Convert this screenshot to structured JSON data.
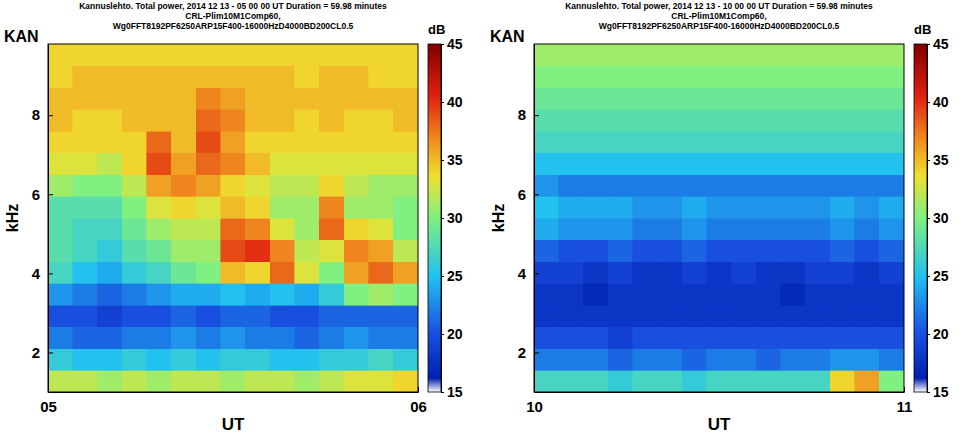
{
  "chart_data": [
    {
      "type": "heatmap",
      "title": [
        "Kannuslehto. Total power, 2014 12 13 - 05 00 00 UT Duration = 59.98 minutes",
        "CRL-Plim10M1Comp60,",
        "Wg0FFT8192PF6250ARP15F400-16000HzD4000BD200CL0.5"
      ],
      "annotation": "KAN",
      "x_label": "UT",
      "y_label": "kHz",
      "xlim": [
        5,
        6
      ],
      "xticks": [
        {
          "value": 5,
          "label": "05"
        },
        {
          "value": 6,
          "label": "06"
        }
      ],
      "ylim": [
        1,
        9.8
      ],
      "yticks": [
        2,
        4,
        6,
        8
      ],
      "x_bins": [
        5,
        5.0667,
        5.1333,
        5.2,
        5.2667,
        5.3333,
        5.4,
        5.4667,
        5.5333,
        5.6,
        5.6667,
        5.7333,
        5.8,
        5.8667,
        5.9333,
        6
      ],
      "y_bins": [
        1,
        1.55,
        2.1,
        2.65,
        3.2,
        3.75,
        4.3,
        4.85,
        5.4,
        5.95,
        6.5,
        7.05,
        7.6,
        8.15,
        8.7,
        9.25,
        9.8
      ],
      "values": [
        [
          32,
          32,
          31,
          32,
          31,
          32,
          32,
          31,
          32,
          32,
          31,
          32,
          33,
          33,
          34
        ],
        [
          26,
          25,
          25,
          26,
          25,
          26,
          25,
          26,
          26,
          25,
          25,
          26,
          26,
          27,
          26
        ],
        [
          22,
          21,
          21,
          22,
          22,
          23,
          22,
          23,
          22,
          22,
          21,
          22,
          23,
          22,
          22
        ],
        [
          20,
          20,
          19,
          20,
          20,
          21,
          20,
          21,
          21,
          20,
          20,
          21,
          21,
          21,
          21
        ],
        [
          23,
          22,
          21,
          22,
          23,
          24,
          24,
          25,
          24,
          25,
          24,
          26,
          30,
          31,
          30
        ],
        [
          27,
          25,
          24,
          26,
          27,
          29,
          30,
          35,
          34,
          38,
          33,
          30,
          36,
          38,
          36
        ],
        [
          28,
          27,
          26,
          28,
          29,
          31,
          31,
          39,
          40,
          37,
          32,
          33,
          37,
          36,
          32
        ],
        [
          28,
          27,
          27,
          29,
          31,
          32,
          32,
          38,
          37,
          33,
          31,
          38,
          34,
          33,
          30
        ],
        [
          28,
          28,
          28,
          30,
          33,
          34,
          33,
          35,
          34,
          31,
          31,
          37,
          31,
          31,
          30
        ],
        [
          31,
          30,
          30,
          32,
          36,
          37,
          36,
          34,
          33,
          32,
          32,
          34,
          32,
          31,
          31
        ],
        [
          33,
          33,
          32,
          34,
          39,
          36,
          38,
          37,
          35,
          33,
          33,
          33,
          33,
          33,
          33
        ],
        [
          34,
          34,
          34,
          34,
          38,
          35,
          39,
          36,
          34,
          34,
          34,
          34,
          34,
          34,
          34
        ],
        [
          35,
          34,
          34,
          35,
          35,
          35,
          38,
          37,
          35,
          35,
          34,
          35,
          34,
          34,
          35
        ],
        [
          35,
          35,
          35,
          35,
          35,
          35,
          37,
          36,
          35,
          35,
          35,
          35,
          35,
          35,
          35
        ],
        [
          34,
          35,
          35,
          35,
          35,
          35,
          35,
          35,
          35,
          35,
          34,
          35,
          35,
          34,
          34
        ],
        [
          34,
          34,
          34,
          34,
          34,
          34,
          34,
          34,
          34,
          34,
          34,
          34,
          34,
          34,
          34
        ]
      ],
      "colorbar": {
        "label": "dB",
        "range": [
          15,
          45
        ],
        "ticks": [
          15,
          20,
          25,
          30,
          35,
          40,
          45
        ]
      }
    },
    {
      "type": "heatmap",
      "title": [
        "Kannuslehto. Total power, 2014 12 13 - 10 00 00 UT Duration = 59.98 minutes",
        "CRL-Plim10M1Comp60,",
        "Wg0FFT8192PF6250ARP15F400-16000HzD4000BD200CL0.5"
      ],
      "annotation": "KAN",
      "x_label": "UT",
      "y_label": "kHz",
      "xlim": [
        10,
        11
      ],
      "xticks": [
        {
          "value": 10,
          "label": "10"
        },
        {
          "value": 11,
          "label": "11"
        }
      ],
      "ylim": [
        1,
        9.8
      ],
      "yticks": [
        2,
        4,
        6,
        8
      ],
      "x_bins": [
        10,
        10.0667,
        10.1333,
        10.2,
        10.2667,
        10.3333,
        10.4,
        10.4667,
        10.5333,
        10.6,
        10.6667,
        10.7333,
        10.8,
        10.8667,
        10.9333,
        11
      ],
      "y_bins": [
        1,
        1.55,
        2.1,
        2.65,
        3.2,
        3.75,
        4.3,
        4.85,
        5.4,
        5.95,
        6.5,
        7.05,
        7.6,
        8.15,
        8.7,
        9.25,
        9.8
      ],
      "values": [
        [
          27,
          27,
          27,
          26,
          27,
          27,
          26,
          27,
          27,
          27,
          27,
          27,
          34,
          36,
          30
        ],
        [
          22,
          22,
          22,
          21,
          22,
          22,
          21,
          22,
          22,
          21,
          22,
          22,
          23,
          23,
          22
        ],
        [
          20,
          20,
          20,
          19,
          20,
          20,
          20,
          20,
          20,
          20,
          20,
          20,
          20,
          20,
          20
        ],
        [
          18,
          18,
          18,
          18,
          18,
          18,
          18,
          18,
          18,
          18,
          18,
          18,
          18,
          18,
          18
        ],
        [
          18,
          18,
          17,
          18,
          18,
          18,
          18,
          18,
          18,
          18,
          17,
          18,
          18,
          18,
          18
        ],
        [
          19,
          19,
          18,
          19,
          18,
          18,
          19,
          18,
          19,
          18,
          18,
          19,
          19,
          18,
          19
        ],
        [
          21,
          20,
          20,
          21,
          20,
          20,
          21,
          20,
          20,
          20,
          20,
          20,
          21,
          20,
          21
        ],
        [
          24,
          23,
          23,
          23,
          22,
          22,
          23,
          22,
          22,
          22,
          22,
          22,
          23,
          22,
          23
        ],
        [
          25,
          24,
          24,
          24,
          23,
          23,
          24,
          23,
          23,
          23,
          23,
          23,
          24,
          23,
          24
        ],
        [
          23,
          22,
          22,
          22,
          22,
          22,
          22,
          22,
          22,
          22,
          22,
          22,
          22,
          22,
          22
        ],
        [
          25,
          25,
          25,
          25,
          25,
          25,
          25,
          25,
          25,
          25,
          25,
          25,
          25,
          25,
          25
        ],
        [
          27,
          27,
          27,
          27,
          27,
          27,
          27,
          27,
          27,
          27,
          27,
          27,
          27,
          27,
          27
        ],
        [
          28,
          28,
          28,
          28,
          28,
          28,
          28,
          28,
          28,
          28,
          28,
          28,
          28,
          28,
          28
        ],
        [
          29,
          29,
          29,
          29,
          29,
          29,
          29,
          29,
          29,
          29,
          29,
          29,
          29,
          29,
          29
        ],
        [
          30,
          30,
          30,
          30,
          30,
          30,
          30,
          30,
          30,
          30,
          30,
          30,
          30,
          30,
          30
        ],
        [
          31,
          31,
          31,
          31,
          31,
          31,
          31,
          31,
          31,
          31,
          31,
          31,
          31,
          31,
          31
        ]
      ],
      "colorbar": {
        "label": "dB",
        "range": [
          15,
          45
        ],
        "ticks": [
          15,
          20,
          25,
          30,
          35,
          40,
          45
        ]
      }
    }
  ]
}
